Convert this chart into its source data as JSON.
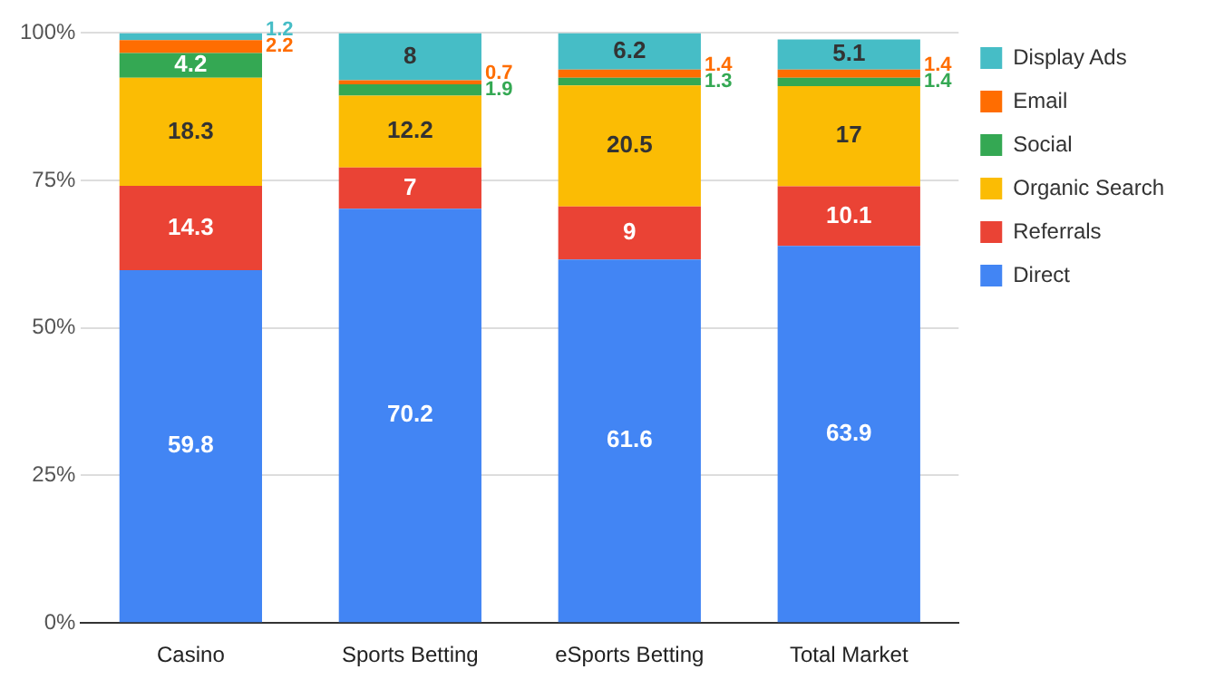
{
  "chart_data": {
    "type": "bar",
    "stacked": true,
    "categories": [
      "Casino",
      "Sports Betting",
      "eSports Betting",
      "Total Market"
    ],
    "series": [
      {
        "name": "Direct",
        "color": "#4285f4",
        "values": [
          59.8,
          70.2,
          61.6,
          63.9
        ]
      },
      {
        "name": "Referrals",
        "color": "#ea4335",
        "values": [
          14.3,
          7,
          9,
          10.1
        ]
      },
      {
        "name": "Organic Search",
        "color": "#fbbc04",
        "values": [
          18.3,
          12.2,
          20.5,
          17
        ]
      },
      {
        "name": "Social",
        "color": "#34a853",
        "values": [
          4.2,
          1.9,
          1.3,
          1.4
        ]
      },
      {
        "name": "Email",
        "color": "#ff6d01",
        "values": [
          2.2,
          0.7,
          1.4,
          1.4
        ]
      },
      {
        "name": "Display Ads",
        "color": "#46bdc6",
        "values": [
          1.2,
          8,
          6.2,
          5.1
        ]
      }
    ],
    "ylim": [
      0,
      100
    ],
    "yticks": [
      {
        "value": 0,
        "label": "0%"
      },
      {
        "value": 25,
        "label": "25%"
      },
      {
        "value": 50,
        "label": "50%"
      },
      {
        "value": 75,
        "label": "75%"
      },
      {
        "value": 100,
        "label": "100%"
      }
    ],
    "grid": "y",
    "legend": "right",
    "data_labels": true
  }
}
